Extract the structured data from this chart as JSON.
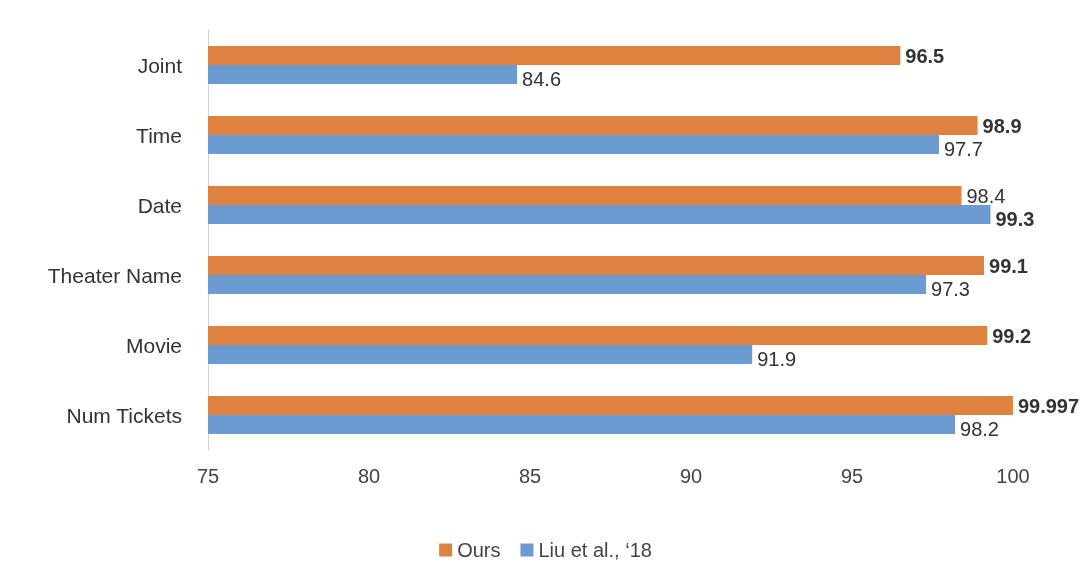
{
  "chart_data": {
    "type": "bar",
    "orientation": "horizontal",
    "categories": [
      "Joint",
      "Time",
      "Date",
      "Theater Name",
      "Movie",
      "Num Tickets"
    ],
    "series": [
      {
        "name": "Ours",
        "color": "#e0823f",
        "values": [
          96.5,
          98.9,
          98.4,
          99.1,
          99.2,
          99.997
        ]
      },
      {
        "name": "Liu et al., ‘18",
        "color": "#6a9bd1",
        "values": [
          84.6,
          97.7,
          99.3,
          97.3,
          91.9,
          98.2
        ]
      }
    ],
    "xlim": [
      75,
      100
    ],
    "xticks": [
      75,
      80,
      85,
      90,
      95,
      100
    ],
    "data_labels": true,
    "legend": "bottom",
    "grid": false
  }
}
